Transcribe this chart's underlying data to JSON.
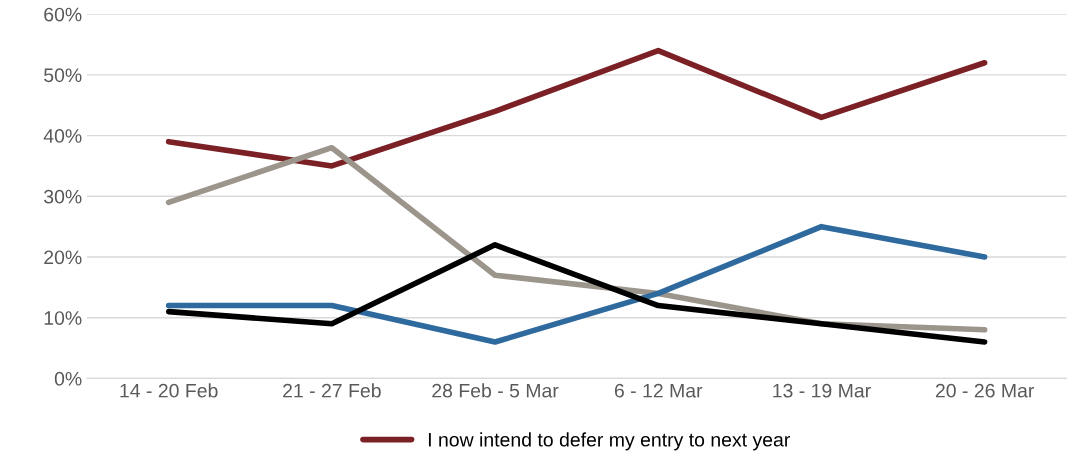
{
  "chart_data": {
    "type": "line",
    "categories": [
      "14 - 20 Feb",
      "21 - 27 Feb",
      "28 Feb - 5 Mar",
      "6 - 12 Mar",
      "13 - 19 Mar",
      "20 - 26 Mar"
    ],
    "series": [
      {
        "name": "I now intend to defer my entry to next year",
        "color": "#7b2025",
        "values": [
          39,
          35,
          44,
          54,
          43,
          52
        ]
      },
      {
        "color": "#9b958c",
        "values": [
          29,
          38,
          17,
          14,
          9,
          8
        ]
      },
      {
        "color": "#2e6a9e",
        "values": [
          12,
          12,
          6,
          14,
          25,
          20
        ]
      },
      {
        "color": "#000000",
        "values": [
          11,
          9,
          22,
          12,
          9,
          6
        ]
      }
    ],
    "ylim": [
      0,
      60
    ],
    "yticks": [
      {
        "value": 0,
        "label": "0%"
      },
      {
        "value": 10,
        "label": "10%"
      },
      {
        "value": 20,
        "label": "20%"
      },
      {
        "value": 30,
        "label": "30%"
      },
      {
        "value": 40,
        "label": "40%"
      },
      {
        "value": 50,
        "label": "50%"
      },
      {
        "value": 60,
        "label": "60%"
      }
    ],
    "grid": "y",
    "legend": "bottom",
    "marker": "none",
    "line_style": "solid"
  }
}
